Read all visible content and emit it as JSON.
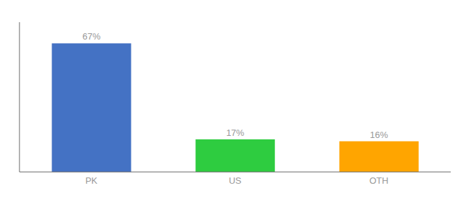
{
  "chart_data": {
    "type": "bar",
    "categories": [
      "PK",
      "US",
      "OTH"
    ],
    "values": [
      67,
      17,
      16
    ],
    "value_labels": [
      "67%",
      "17%",
      "16%"
    ],
    "colors": [
      "#4472C4",
      "#2ECC40",
      "#FFA500"
    ],
    "ylim": [
      0,
      78
    ],
    "data_labels": true,
    "tick_labels": "x",
    "grid": false
  }
}
